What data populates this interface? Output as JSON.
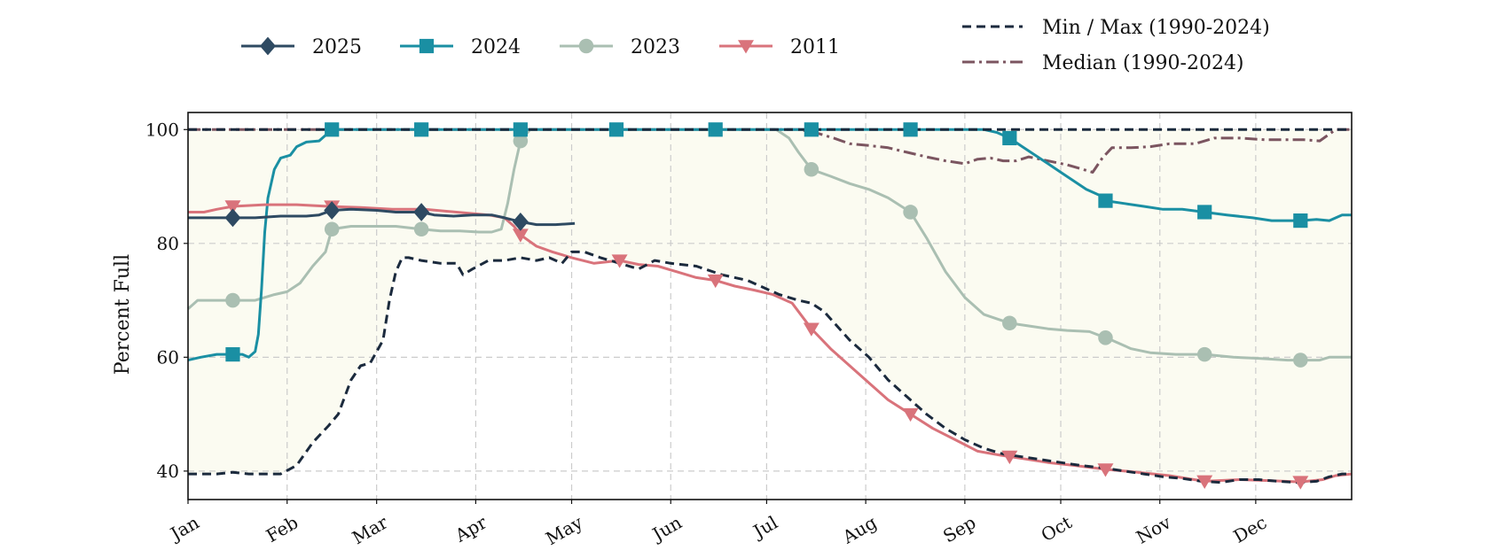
{
  "chart_data": {
    "type": "line",
    "title": "",
    "xlabel": "",
    "ylabel": "Percent Full",
    "xlim": [
      1,
      365
    ],
    "ylim": [
      35,
      103
    ],
    "y_ticks": [
      40,
      60,
      80,
      100
    ],
    "months": [
      "Jan",
      "Feb",
      "Mar",
      "Apr",
      "May",
      "Jun",
      "Jul",
      "Aug",
      "Sep",
      "Oct",
      "Nov",
      "Dec"
    ],
    "month_start_days": [
      1,
      32,
      60,
      91,
      121,
      152,
      182,
      213,
      244,
      274,
      305,
      335
    ],
    "grid": true,
    "envelope_fill_color": "#fbfbf1",
    "legend_left": {
      "placement": "top-left, outside plot",
      "entries": [
        {
          "label": "2025",
          "series": "2025"
        },
        {
          "label": "2024",
          "series": "2024"
        },
        {
          "label": "2023",
          "series": "2023"
        },
        {
          "label": "2011",
          "series": "2011"
        }
      ]
    },
    "legend_right": {
      "placement": "top-right, outside plot",
      "entries": [
        {
          "label": "Min / Max (1990-2024)",
          "color": "#1b2a3d",
          "dash": "dashed"
        },
        {
          "label": "Median (1990-2024)",
          "color": "#7b5560",
          "dash": "dashdot"
        }
      ]
    },
    "series": [
      {
        "name": "Min",
        "color": "#1b2a3d",
        "dash": "dashed",
        "marker": "none",
        "points": [
          [
            1,
            39.5
          ],
          [
            10,
            39.5
          ],
          [
            15,
            39.8
          ],
          [
            20,
            39.5
          ],
          [
            30,
            39.5
          ],
          [
            35,
            41
          ],
          [
            40,
            45
          ],
          [
            45,
            48
          ],
          [
            48,
            50
          ],
          [
            50,
            53
          ],
          [
            52,
            56
          ],
          [
            55,
            58.5
          ],
          [
            58,
            59
          ],
          [
            60,
            61
          ],
          [
            62,
            63
          ],
          [
            64,
            70
          ],
          [
            66,
            75
          ],
          [
            68,
            77.5
          ],
          [
            70,
            77.5
          ],
          [
            74,
            77
          ],
          [
            80,
            76.5
          ],
          [
            85,
            76.5
          ],
          [
            87,
            74.5
          ],
          [
            90,
            75.5
          ],
          [
            95,
            77
          ],
          [
            100,
            77
          ],
          [
            105,
            77.5
          ],
          [
            110,
            77
          ],
          [
            114,
            77.5
          ],
          [
            118,
            76.5
          ],
          [
            121,
            78.5
          ],
          [
            125,
            78.5
          ],
          [
            130,
            77.5
          ],
          [
            136,
            76.5
          ],
          [
            142,
            75.5
          ],
          [
            147,
            77
          ],
          [
            152,
            76.5
          ],
          [
            160,
            76
          ],
          [
            168,
            74.5
          ],
          [
            176,
            73.5
          ],
          [
            182,
            72
          ],
          [
            186,
            71
          ],
          [
            192,
            70
          ],
          [
            196,
            69.5
          ],
          [
            200,
            68
          ],
          [
            204,
            65.5
          ],
          [
            208,
            63
          ],
          [
            214,
            60
          ],
          [
            220,
            56
          ],
          [
            226,
            53
          ],
          [
            232,
            50
          ],
          [
            238,
            47.5
          ],
          [
            244,
            45.5
          ],
          [
            250,
            44
          ],
          [
            256,
            43
          ],
          [
            262,
            42.5
          ],
          [
            268,
            42
          ],
          [
            274,
            41.5
          ],
          [
            280,
            41
          ],
          [
            288,
            40.5
          ],
          [
            294,
            40
          ],
          [
            300,
            39.5
          ],
          [
            306,
            39
          ],
          [
            312,
            38.7
          ],
          [
            318,
            38.2
          ],
          [
            324,
            38
          ],
          [
            330,
            38.5
          ],
          [
            336,
            38.5
          ],
          [
            342,
            38.2
          ],
          [
            348,
            38
          ],
          [
            354,
            38.2
          ],
          [
            358,
            39
          ],
          [
            362,
            39.5
          ],
          [
            365,
            39.5
          ]
        ]
      },
      {
        "name": "Max",
        "color": "#1b2a3d",
        "dash": "dashed",
        "marker": "none",
        "points": [
          [
            1,
            100
          ],
          [
            365,
            100
          ]
        ]
      },
      {
        "name": "Median",
        "color": "#7b5560",
        "dash": "dashdot",
        "marker": "none",
        "points": [
          [
            1,
            100
          ],
          [
            192,
            100
          ],
          [
            197,
            99.5
          ],
          [
            203,
            98.5
          ],
          [
            208,
            97.5
          ],
          [
            214,
            97.2
          ],
          [
            220,
            96.8
          ],
          [
            226,
            96
          ],
          [
            232,
            95.2
          ],
          [
            238,
            94.5
          ],
          [
            244,
            94
          ],
          [
            248,
            94.8
          ],
          [
            252,
            95
          ],
          [
            256,
            94.5
          ],
          [
            260,
            94.5
          ],
          [
            264,
            95.2
          ],
          [
            270,
            94.5
          ],
          [
            276,
            93.8
          ],
          [
            281,
            93
          ],
          [
            284,
            92.5
          ],
          [
            287,
            95
          ],
          [
            290,
            96.8
          ],
          [
            296,
            96.8
          ],
          [
            302,
            97
          ],
          [
            308,
            97.5
          ],
          [
            316,
            97.5
          ],
          [
            322,
            98.5
          ],
          [
            330,
            98.5
          ],
          [
            338,
            98.2
          ],
          [
            344,
            98.2
          ],
          [
            350,
            98.2
          ],
          [
            355,
            98
          ],
          [
            360,
            100
          ],
          [
            365,
            100
          ]
        ]
      },
      {
        "name": "2011",
        "color": "#d9737b",
        "dash": "solid",
        "marker": "triangle-down",
        "marker_days": [
          15,
          46,
          105,
          136,
          166,
          196,
          227,
          258,
          288,
          319,
          349
        ],
        "points": [
          [
            1,
            85.5
          ],
          [
            6,
            85.5
          ],
          [
            10,
            86
          ],
          [
            15,
            86.5
          ],
          [
            25,
            86.8
          ],
          [
            35,
            86.8
          ],
          [
            45,
            86.5
          ],
          [
            55,
            86.3
          ],
          [
            65,
            86
          ],
          [
            75,
            86
          ],
          [
            85,
            85.5
          ],
          [
            95,
            85
          ],
          [
            100,
            84.5
          ],
          [
            103,
            83
          ],
          [
            105,
            81.5
          ],
          [
            110,
            79.5
          ],
          [
            115,
            78.5
          ],
          [
            121,
            77.5
          ],
          [
            128,
            76.5
          ],
          [
            136,
            77
          ],
          [
            142,
            76.3
          ],
          [
            148,
            76
          ],
          [
            154,
            75
          ],
          [
            160,
            74
          ],
          [
            166,
            73.5
          ],
          [
            172,
            72.5
          ],
          [
            178,
            71.8
          ],
          [
            184,
            71
          ],
          [
            190,
            69.5
          ],
          [
            196,
            65
          ],
          [
            202,
            61.5
          ],
          [
            208,
            58.5
          ],
          [
            214,
            55.5
          ],
          [
            220,
            52.5
          ],
          [
            227,
            50
          ],
          [
            234,
            47.5
          ],
          [
            241,
            45.5
          ],
          [
            248,
            43.5
          ],
          [
            255,
            42.8
          ],
          [
            262,
            42.2
          ],
          [
            270,
            41.5
          ],
          [
            278,
            41
          ],
          [
            288,
            40.3
          ],
          [
            298,
            39.8
          ],
          [
            308,
            39.2
          ],
          [
            319,
            38.2
          ],
          [
            330,
            38.5
          ],
          [
            340,
            38.3
          ],
          [
            349,
            38.1
          ],
          [
            356,
            38.5
          ],
          [
            360,
            39.2
          ],
          [
            365,
            39.5
          ]
        ]
      },
      {
        "name": "2023",
        "color": "#aabfb2",
        "dash": "solid",
        "marker": "circle",
        "marker_days": [
          15,
          46,
          74,
          105,
          196,
          227,
          258,
          288,
          319,
          349
        ],
        "points": [
          [
            1,
            68.5
          ],
          [
            4,
            70
          ],
          [
            10,
            70
          ],
          [
            15,
            70
          ],
          [
            22,
            70
          ],
          [
            28,
            71
          ],
          [
            32,
            71.5
          ],
          [
            36,
            73
          ],
          [
            40,
            76
          ],
          [
            44,
            78.5
          ],
          [
            46,
            82.5
          ],
          [
            52,
            83
          ],
          [
            60,
            83
          ],
          [
            66,
            83
          ],
          [
            74,
            82.5
          ],
          [
            80,
            82.2
          ],
          [
            86,
            82.2
          ],
          [
            92,
            82
          ],
          [
            96,
            82
          ],
          [
            99,
            82.5
          ],
          [
            101,
            87
          ],
          [
            103,
            93
          ],
          [
            105,
            98
          ],
          [
            108,
            100
          ],
          [
            115,
            100
          ],
          [
            150,
            100
          ],
          [
            185,
            100
          ],
          [
            189,
            98.5
          ],
          [
            192,
            96
          ],
          [
            196,
            93
          ],
          [
            202,
            91.8
          ],
          [
            208,
            90.5
          ],
          [
            214,
            89.5
          ],
          [
            220,
            88
          ],
          [
            227,
            85.5
          ],
          [
            232,
            81
          ],
          [
            238,
            75
          ],
          [
            244,
            70.5
          ],
          [
            250,
            67.5
          ],
          [
            258,
            66
          ],
          [
            264,
            65.5
          ],
          [
            270,
            65
          ],
          [
            276,
            64.7
          ],
          [
            283,
            64.5
          ],
          [
            290,
            63
          ],
          [
            296,
            61.5
          ],
          [
            302,
            60.8
          ],
          [
            310,
            60.5
          ],
          [
            319,
            60.5
          ],
          [
            328,
            60
          ],
          [
            336,
            59.8
          ],
          [
            345,
            59.5
          ],
          [
            349,
            59.5
          ],
          [
            355,
            59.5
          ],
          [
            358,
            60
          ],
          [
            365,
            60
          ]
        ]
      },
      {
        "name": "2024",
        "color": "#1a8fa3",
        "dash": "solid",
        "marker": "square",
        "marker_days": [
          15,
          46,
          74,
          105,
          135,
          166,
          196,
          227,
          258,
          288,
          319,
          349
        ],
        "points": [
          [
            1,
            59.5
          ],
          [
            5,
            60
          ],
          [
            10,
            60.5
          ],
          [
            15,
            60.5
          ],
          [
            18,
            60.5
          ],
          [
            20,
            60
          ],
          [
            22,
            61
          ],
          [
            23,
            64
          ],
          [
            24,
            72
          ],
          [
            25,
            82
          ],
          [
            26,
            88
          ],
          [
            28,
            93
          ],
          [
            30,
            95
          ],
          [
            33,
            95.5
          ],
          [
            35,
            97
          ],
          [
            38,
            97.8
          ],
          [
            42,
            98
          ],
          [
            44,
            99
          ],
          [
            46,
            100
          ],
          [
            60,
            100
          ],
          [
            100,
            100
          ],
          [
            150,
            100
          ],
          [
            200,
            100
          ],
          [
            250,
            100
          ],
          [
            254,
            99.5
          ],
          [
            258,
            98.5
          ],
          [
            262,
            97
          ],
          [
            266,
            95.5
          ],
          [
            270,
            94
          ],
          [
            274,
            92.5
          ],
          [
            278,
            91
          ],
          [
            282,
            89.5
          ],
          [
            286,
            88.5
          ],
          [
            288,
            87.5
          ],
          [
            294,
            87
          ],
          [
            300,
            86.5
          ],
          [
            306,
            86
          ],
          [
            312,
            86
          ],
          [
            319,
            85.5
          ],
          [
            326,
            85
          ],
          [
            334,
            84.5
          ],
          [
            340,
            84
          ],
          [
            346,
            84
          ],
          [
            349,
            84
          ],
          [
            354,
            84.2
          ],
          [
            358,
            84
          ],
          [
            362,
            85
          ],
          [
            365,
            85
          ]
        ]
      },
      {
        "name": "2025",
        "color": "#2e4a62",
        "dash": "solid",
        "marker": "diamond",
        "marker_days": [
          15,
          46,
          74,
          105
        ],
        "points": [
          [
            1,
            84.5
          ],
          [
            8,
            84.5
          ],
          [
            15,
            84.5
          ],
          [
            22,
            84.5
          ],
          [
            30,
            84.8
          ],
          [
            38,
            84.8
          ],
          [
            42,
            85
          ],
          [
            46,
            85.8
          ],
          [
            52,
            86
          ],
          [
            60,
            85.8
          ],
          [
            66,
            85.5
          ],
          [
            74,
            85.5
          ],
          [
            78,
            85
          ],
          [
            84,
            84.8
          ],
          [
            90,
            85
          ],
          [
            96,
            85
          ],
          [
            100,
            84.5
          ],
          [
            105,
            83.8
          ],
          [
            110,
            83.3
          ],
          [
            116,
            83.3
          ],
          [
            122,
            83.5
          ]
        ]
      }
    ]
  }
}
